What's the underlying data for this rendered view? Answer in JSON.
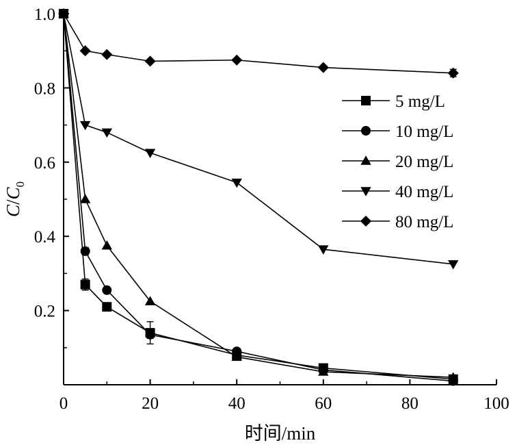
{
  "chart_data": {
    "type": "line",
    "xlabel": "时间/min",
    "ylabel_main": "C",
    "ylabel_sep": "/",
    "ylabel_sub_base": "C",
    "ylabel_subscript": "0",
    "xlim": [
      0,
      100
    ],
    "ylim": [
      0,
      1.0
    ],
    "x_ticks": [
      0,
      20,
      40,
      60,
      80,
      100
    ],
    "x_tick_labels": [
      "0",
      "20",
      "40",
      "60",
      "80",
      "100"
    ],
    "y_ticks": [
      0.2,
      0.4,
      0.6,
      0.8,
      1.0
    ],
    "y_tick_labels": [
      "0.2",
      "0.4",
      "0.6",
      "0.8",
      "1.0"
    ],
    "grid": false,
    "legend_position": "right-center",
    "series": [
      {
        "name": "5 mg/L",
        "marker": "square",
        "x": [
          0,
          5,
          10,
          20,
          40,
          60,
          90
        ],
        "y": [
          1.0,
          0.27,
          0.21,
          0.14,
          0.08,
          0.045,
          0.015
        ],
        "error": [
          0,
          0.015,
          0,
          0.03,
          0,
          0,
          0
        ]
      },
      {
        "name": "10 mg/L",
        "marker": "circle",
        "x": [
          0,
          5,
          10,
          20,
          40,
          60,
          90
        ],
        "y": [
          1.0,
          0.36,
          0.255,
          0.135,
          0.09,
          0.04,
          0.01
        ],
        "error": [
          0,
          0.01,
          0,
          0.01,
          0,
          0,
          0
        ]
      },
      {
        "name": "20 mg/L",
        "marker": "triangle-up",
        "x": [
          0,
          5,
          10,
          20,
          40,
          60,
          90
        ],
        "y": [
          1.0,
          0.5,
          0.375,
          0.225,
          0.075,
          0.035,
          0.02
        ],
        "error": [
          0,
          0,
          0,
          0,
          0,
          0,
          0
        ]
      },
      {
        "name": "40 mg/L",
        "marker": "triangle-down",
        "x": [
          0,
          5,
          10,
          20,
          40,
          60,
          90
        ],
        "y": [
          1.0,
          0.7,
          0.68,
          0.625,
          0.545,
          0.365,
          0.325
        ],
        "error": [
          0,
          0,
          0,
          0,
          0,
          0,
          0
        ]
      },
      {
        "name": "80 mg/L",
        "marker": "diamond",
        "x": [
          0,
          5,
          10,
          20,
          40,
          60,
          90
        ],
        "y": [
          1.0,
          0.9,
          0.89,
          0.872,
          0.875,
          0.855,
          0.84
        ],
        "error": [
          0,
          0,
          0,
          0,
          0,
          0,
          0.01
        ]
      }
    ]
  }
}
